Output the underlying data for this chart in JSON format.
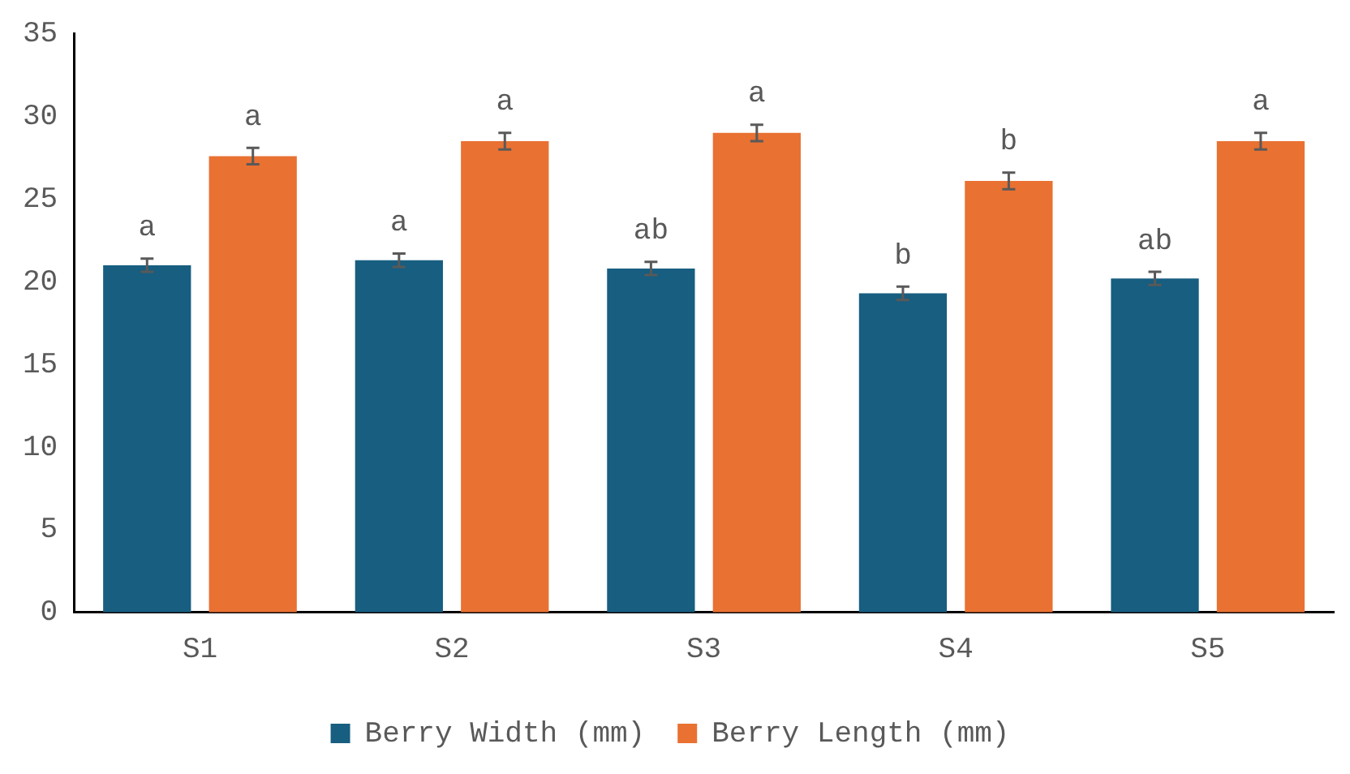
{
  "chart_data": {
    "type": "bar",
    "categories": [
      "S1",
      "S2",
      "S3",
      "S4",
      "S5"
    ],
    "series": [
      {
        "name": "Berry Width (mm)",
        "color": "#175e80",
        "values": [
          21.0,
          21.3,
          20.8,
          19.3,
          20.2
        ],
        "errors": [
          0.4,
          0.4,
          0.4,
          0.4,
          0.4
        ],
        "value_labels": [
          "a",
          "a",
          "ab",
          "b",
          "ab"
        ]
      },
      {
        "name": "Berry Length (mm)",
        "color": "#e97132",
        "values": [
          27.6,
          28.5,
          29.0,
          26.1,
          28.5
        ],
        "errors": [
          0.5,
          0.5,
          0.5,
          0.5,
          0.5
        ],
        "value_labels": [
          "a",
          "a",
          "a",
          "b",
          "a"
        ]
      }
    ],
    "ylim": [
      0,
      35
    ],
    "yticks": [
      0,
      5,
      10,
      15,
      20,
      25,
      30,
      35
    ],
    "grid": false,
    "legend": "bottom"
  }
}
